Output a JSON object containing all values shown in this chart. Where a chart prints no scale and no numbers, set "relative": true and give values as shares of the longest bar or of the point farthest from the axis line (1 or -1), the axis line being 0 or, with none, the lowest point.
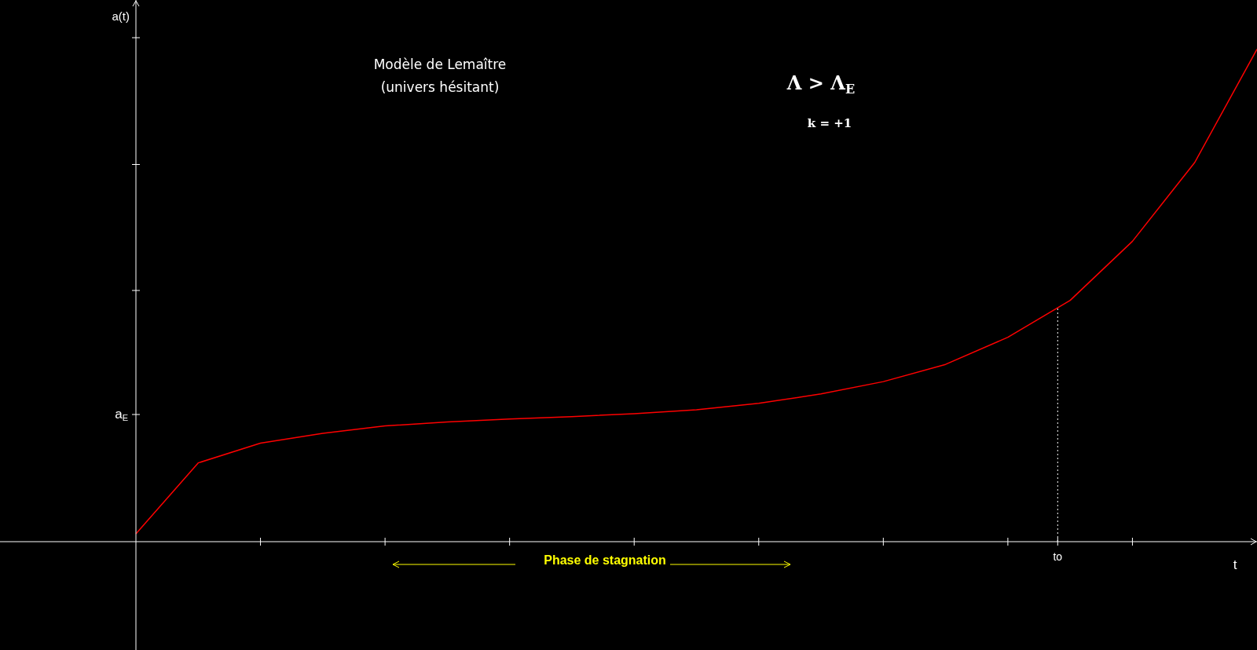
{
  "chart_data": {
    "type": "line",
    "relative": true,
    "title": "Modèle de Lemaître",
    "subtitle": "(univers hésitant)",
    "xlabel": "t",
    "ylabel": "a(t)",
    "categories": [
      null,
      null,
      null,
      null,
      null,
      null,
      null,
      null,
      null,
      null,
      null,
      null,
      null,
      null,
      null,
      null,
      null,
      null,
      null
    ],
    "series": [
      {
        "color": "#ff0000",
        "values": [
          0.016,
          0.16,
          0.2,
          0.22,
          0.235,
          0.243,
          0.249,
          0.254,
          0.26,
          0.268,
          0.281,
          0.3,
          0.325,
          0.36,
          0.415,
          0.49,
          0.61,
          0.77,
          1.0
        ]
      }
    ],
    "annotations": [
      "a$_{E}$",
      "to",
      "Λ > Λ$_{E}$",
      "k = +1",
      "Phase de stagnation"
    ],
    "marker": "none",
    "line_style": "solid"
  }
}
